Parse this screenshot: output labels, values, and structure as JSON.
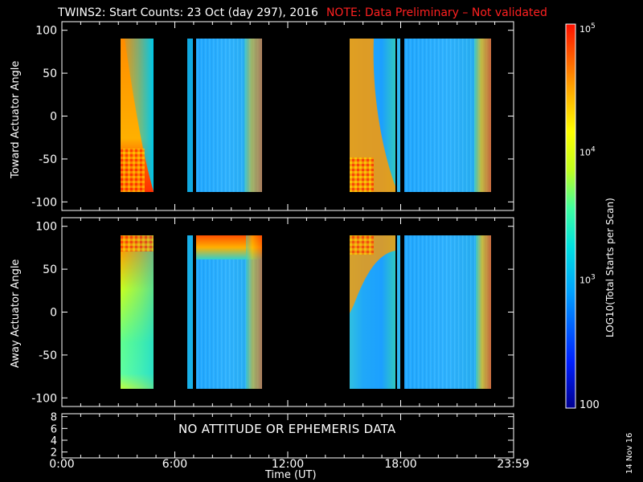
{
  "header": {
    "title": "TWINS2: Start Counts: 23 Oct (day 297), 2016",
    "note": "NOTE: Data Preliminary – Not validated"
  },
  "panels": {
    "top_ylabel": "Toward Actuator Angle",
    "bottom_ylabel": "Away Actuator Angle",
    "no_data_message": "NO ATTITUDE OR EPHEMERIS DATA"
  },
  "xaxis": {
    "label": "Time (UT)",
    "tick_labels": [
      "0:00",
      "6:00",
      "12:00",
      "18:00",
      "23:59"
    ]
  },
  "colorbar": {
    "label": "LOG10(Total Starts per Scan)",
    "tick_labels": [
      "10^5",
      "10^4",
      "10^3",
      "100"
    ]
  },
  "datestamp": "14 Nov 16",
  "colors": {
    "note": "#ff2020",
    "background": "#000000",
    "axes": "#ffffff"
  },
  "chart_data": [
    {
      "type": "heatmap",
      "title": "",
      "xlabel": "Time (UT)",
      "ylabel": "Toward Actuator Angle",
      "xlim": [
        0,
        24
      ],
      "ylim": [
        -110,
        110
      ],
      "yticks": [
        100,
        50,
        0,
        -50,
        -100
      ],
      "x_tick_labels": [
        "0:00",
        "6:00",
        "12:00",
        "18:00",
        "23:59"
      ],
      "data_y_range": [
        -88,
        90
      ],
      "coverage_hours": [
        [
          3.0,
          4.7
        ],
        [
          6.6,
          6.85
        ],
        [
          7.05,
          10.5
        ],
        [
          15.2,
          17.3
        ],
        [
          17.55,
          18.0
        ],
        [
          18.2,
          23.6
        ]
      ],
      "colorbar_range": [
        100,
        100000
      ],
      "dominant_level": "10^3"
    },
    {
      "type": "heatmap",
      "title": "",
      "xlabel": "Time (UT)",
      "ylabel": "Away Actuator Angle",
      "xlim": [
        0,
        24
      ],
      "ylim": [
        -110,
        110
      ],
      "yticks": [
        100,
        50,
        0,
        -50,
        -100
      ],
      "x_tick_labels": [
        "0:00",
        "6:00",
        "12:00",
        "18:00",
        "23:59"
      ],
      "data_y_range": [
        -88,
        90
      ],
      "coverage_hours": [
        [
          3.0,
          4.7
        ],
        [
          6.6,
          6.85
        ],
        [
          7.05,
          10.5
        ],
        [
          15.2,
          17.3
        ],
        [
          17.55,
          18.0
        ],
        [
          18.2,
          23.6
        ]
      ],
      "colorbar_range": [
        100,
        100000
      ],
      "dominant_level": "10^3"
    },
    {
      "type": "line",
      "title": "",
      "ylim": [
        1,
        8.5
      ],
      "yticks": [
        2,
        4,
        6,
        8
      ],
      "series": [],
      "annotation": "NO ATTITUDE OR EPHEMERIS DATA"
    }
  ]
}
